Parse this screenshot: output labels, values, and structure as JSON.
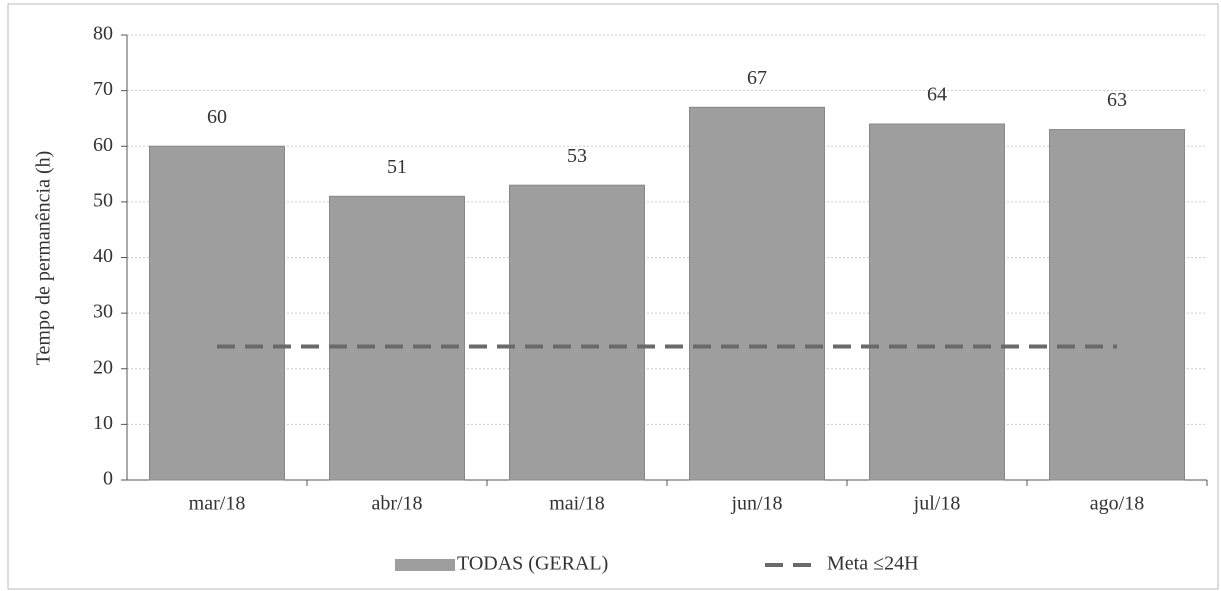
{
  "chart_data": {
    "type": "bar",
    "y_label": "Tempo de permanência  (h)",
    "categories": [
      "mar/18",
      "abr/18",
      "mai/18",
      "jun/18",
      "jul/18",
      "ago/18"
    ],
    "series": [
      {
        "name": "TODAS (GERAL)",
        "type": "bar",
        "color": "#9e9e9e",
        "values": [
          60,
          51,
          53,
          67,
          64,
          63
        ]
      },
      {
        "name": "Meta ≤24H",
        "type": "line",
        "color": "#6a6a6a",
        "dashed": true,
        "values": [
          24,
          24,
          24,
          24,
          24,
          24
        ]
      }
    ],
    "ylim": [
      0,
      80
    ],
    "yticks": [
      0,
      10,
      20,
      30,
      40,
      50,
      60,
      70,
      80
    ],
    "grid": true,
    "legend": "bottom"
  }
}
